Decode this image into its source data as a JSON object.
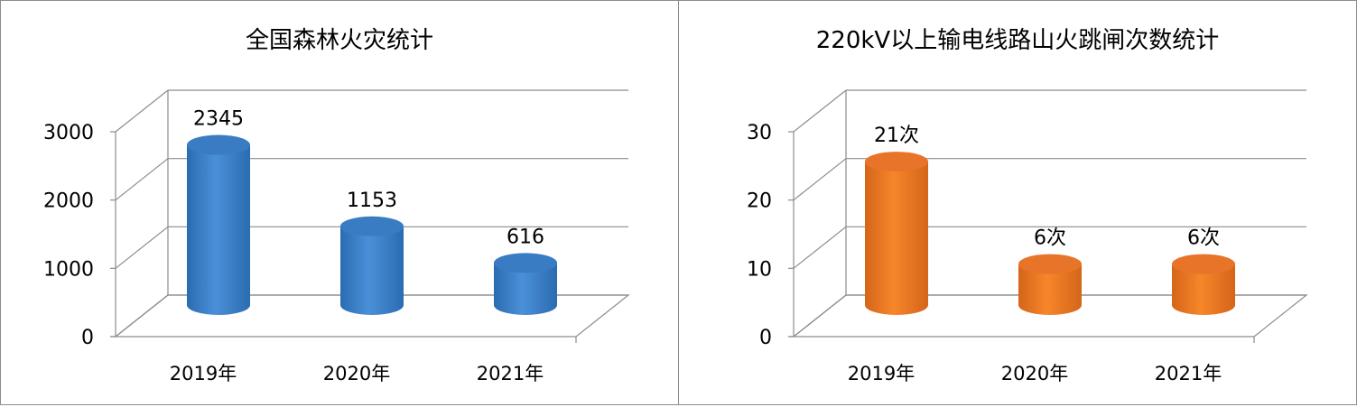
{
  "chart_data": [
    {
      "type": "bar",
      "title": "全国森林火灾统计",
      "categories": [
        "2019年",
        "2020年",
        "2021年"
      ],
      "values": [
        2345,
        1153,
        616
      ],
      "data_labels": [
        "2345",
        "1153",
        "616"
      ],
      "ylim": [
        0,
        3000
      ],
      "yticks": [
        0,
        1000,
        2000,
        3000
      ],
      "grid": true,
      "legend": "none",
      "style": "3d-cylinder",
      "color": "#4a90d9",
      "color_dark": "#2b6cb0",
      "color_top": "#3a7cc4"
    },
    {
      "type": "bar",
      "title": "220kV以上输电线路山火跳闸次数统计",
      "categories": [
        "2019年",
        "2020年",
        "2021年"
      ],
      "values": [
        21,
        6,
        6
      ],
      "data_labels": [
        "21次",
        "6次",
        "6次"
      ],
      "ylim": [
        0,
        30
      ],
      "yticks": [
        0,
        10,
        20,
        30
      ],
      "grid": true,
      "legend": "none",
      "style": "3d-cylinder",
      "color": "#f7862a",
      "color_dark": "#d4651a",
      "color_top": "#e8742a"
    }
  ]
}
